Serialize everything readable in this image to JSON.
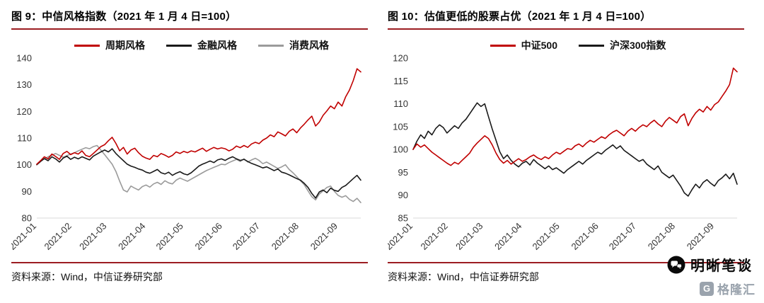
{
  "colors": {
    "accent_rule": "#9c1d22",
    "series_red": "#c00000",
    "series_black": "#1a1a1a",
    "series_gray": "#9b9b9b"
  },
  "chart_data": [
    {
      "figure_label": "图 9",
      "title": "图 9：中信风格指数（2021 年 1 月 4 日=100）",
      "type": "line",
      "grid": false,
      "legend_position": "top",
      "source": "资料来源：Wind，中信证券研究部",
      "x_axis": {
        "unit": "date",
        "start": "2021-01-04",
        "span_days": 258,
        "tick_labels": [
          "2021-01",
          "2021-02",
          "2021-03",
          "2021-04",
          "2021-05",
          "2021-06",
          "2021-07",
          "2021-08",
          "2021-09"
        ],
        "tick_days": [
          0,
          28,
          56,
          87,
          117,
          148,
          178,
          209,
          240
        ]
      },
      "y_axis": {
        "min": 80,
        "max": 140,
        "ticks": [
          80,
          90,
          100,
          110,
          120,
          130,
          140
        ]
      },
      "series": [
        {
          "name": "周期风格",
          "color": "#c00000",
          "values": [
            100.2,
            101.5,
            103.0,
            102.2,
            104.0,
            103.1,
            102.0,
            104.2,
            105.0,
            103.8,
            104.5,
            104.0,
            105.2,
            103.5,
            103.0,
            104.2,
            105.5,
            106.8,
            107.5,
            109.0,
            110.3,
            108.0,
            105.2,
            106.5,
            104.0,
            105.5,
            106.2,
            104.5,
            103.2,
            102.5,
            102.0,
            103.5,
            103.0,
            104.2,
            103.6,
            102.8,
            103.5,
            104.8,
            104.2,
            105.0,
            104.5,
            105.2,
            104.8,
            105.5,
            106.2,
            105.0,
            105.8,
            106.5,
            105.9,
            106.3,
            106.0,
            105.2,
            105.8,
            107.0,
            106.4,
            107.2,
            106.5,
            107.8,
            108.4,
            107.9,
            109.2,
            110.0,
            111.2,
            110.5,
            112.3,
            111.6,
            110.8,
            112.5,
            113.4,
            112.0,
            113.8,
            115.2,
            116.8,
            118.2,
            114.5,
            116.0,
            118.5,
            120.2,
            122.0,
            121.0,
            123.5,
            122.0,
            125.5,
            128.0,
            131.5,
            136.0,
            134.8
          ]
        },
        {
          "name": "金融风格",
          "color": "#1a1a1a",
          "values": [
            100.0,
            101.2,
            102.3,
            101.5,
            103.0,
            102.2,
            101.0,
            102.5,
            103.2,
            102.0,
            102.8,
            102.2,
            103.0,
            102.4,
            101.8,
            103.2,
            104.0,
            104.8,
            105.5,
            104.8,
            106.0,
            104.2,
            102.8,
            101.5,
            100.2,
            99.5,
            99.0,
            98.4,
            98.0,
            97.2,
            96.8,
            97.5,
            98.2,
            97.0,
            96.5,
            97.2,
            96.0,
            96.8,
            97.4,
            96.6,
            96.2,
            97.0,
            98.2,
            99.5,
            100.2,
            100.8,
            101.4,
            100.8,
            101.8,
            102.2,
            101.6,
            102.4,
            103.0,
            102.2,
            101.6,
            102.0,
            101.2,
            100.5,
            100.0,
            99.4,
            98.8,
            99.2,
            98.5,
            97.8,
            98.4,
            97.2,
            96.8,
            96.2,
            95.5,
            94.8,
            94.2,
            93.0,
            91.5,
            89.2,
            87.5,
            89.8,
            90.5,
            89.5,
            91.2,
            90.4,
            90.0,
            91.5,
            92.2,
            93.5,
            94.8,
            96.0,
            94.2
          ]
        },
        {
          "name": "消费风格",
          "color": "#9b9b9b",
          "values": [
            100.0,
            101.5,
            102.2,
            103.0,
            103.6,
            104.2,
            103.5,
            102.8,
            103.4,
            104.0,
            104.5,
            105.2,
            105.8,
            106.4,
            106.0,
            106.8,
            107.2,
            105.5,
            103.8,
            102.0,
            100.2,
            97.5,
            93.8,
            90.5,
            89.8,
            92.0,
            91.2,
            90.5,
            91.8,
            92.4,
            91.6,
            92.8,
            93.4,
            92.6,
            94.0,
            93.2,
            92.8,
            94.2,
            95.0,
            94.4,
            93.8,
            94.6,
            95.4,
            96.2,
            97.0,
            97.8,
            98.4,
            99.0,
            99.6,
            100.2,
            100.0,
            100.8,
            101.4,
            102.0,
            101.2,
            102.2,
            101.0,
            101.8,
            102.4,
            101.6,
            100.4,
            101.0,
            100.2,
            99.4,
            98.6,
            99.2,
            100.0,
            98.2,
            97.0,
            95.5,
            94.0,
            92.5,
            90.2,
            88.0,
            86.8,
            89.0,
            90.2,
            91.5,
            92.0,
            90.0,
            88.5,
            87.8,
            88.4,
            87.0,
            86.2,
            87.4,
            85.8
          ]
        }
      ]
    },
    {
      "figure_label": "图 10",
      "title": "图 10：估值更低的股票占优（2021 年 1 月 4 日=100）",
      "type": "line",
      "grid": false,
      "legend_position": "top",
      "source": "资料来源：Wind，中信证券研究部",
      "x_axis": {
        "unit": "date",
        "start": "2021-01-04",
        "span_days": 258,
        "tick_labels": [
          "2021-01",
          "2021-02",
          "2021-03",
          "2021-04",
          "2021-05",
          "2021-06",
          "2021-07",
          "2021-08",
          "2021-09"
        ],
        "tick_days": [
          0,
          28,
          56,
          87,
          117,
          148,
          178,
          209,
          240
        ]
      },
      "y_axis": {
        "min": 85,
        "max": 120,
        "ticks": [
          85,
          90,
          95,
          100,
          105,
          110,
          115,
          120
        ]
      },
      "series": [
        {
          "name": "中证500",
          "color": "#c00000",
          "values": [
            100.0,
            101.2,
            100.5,
            101.0,
            100.2,
            99.4,
            98.8,
            98.2,
            97.6,
            97.0,
            96.5,
            97.2,
            96.8,
            97.6,
            98.4,
            99.2,
            100.5,
            101.4,
            102.2,
            103.0,
            102.4,
            101.0,
            99.2,
            97.8,
            97.0,
            97.6,
            96.8,
            97.4,
            98.0,
            97.4,
            97.8,
            98.4,
            98.8,
            98.2,
            97.8,
            98.4,
            98.0,
            98.8,
            99.4,
            99.0,
            99.6,
            100.2,
            100.0,
            100.8,
            101.2,
            100.6,
            101.4,
            102.0,
            101.6,
            102.2,
            102.8,
            102.4,
            103.2,
            103.8,
            104.2,
            103.6,
            103.0,
            104.0,
            104.6,
            104.0,
            104.8,
            105.4,
            105.0,
            105.8,
            106.4,
            105.6,
            105.0,
            106.2,
            107.0,
            106.4,
            105.8,
            107.2,
            107.8,
            105.2,
            106.8,
            108.0,
            108.8,
            108.2,
            109.4,
            108.6,
            109.8,
            110.4,
            111.6,
            112.8,
            114.2,
            117.8,
            117.0
          ]
        },
        {
          "name": "沪深300指数",
          "color": "#1a1a1a",
          "values": [
            100.0,
            101.8,
            103.2,
            102.4,
            104.0,
            103.2,
            104.6,
            105.4,
            104.8,
            103.6,
            104.4,
            105.2,
            104.6,
            105.8,
            106.6,
            107.8,
            109.0,
            110.2,
            109.4,
            110.0,
            107.2,
            104.5,
            102.0,
            99.5,
            98.0,
            98.8,
            97.6,
            96.8,
            96.2,
            97.0,
            97.4,
            96.6,
            97.8,
            97.0,
            96.4,
            95.8,
            96.4,
            95.6,
            96.0,
            95.4,
            94.8,
            95.6,
            96.2,
            96.8,
            97.4,
            96.8,
            97.6,
            98.2,
            98.8,
            99.4,
            99.0,
            99.8,
            100.4,
            101.0,
            100.2,
            100.8,
            99.8,
            99.2,
            98.6,
            98.0,
            97.4,
            97.8,
            96.8,
            96.2,
            95.6,
            96.4,
            95.0,
            94.4,
            93.8,
            94.4,
            93.2,
            92.0,
            90.5,
            89.8,
            91.2,
            92.4,
            91.6,
            92.8,
            93.4,
            92.6,
            92.0,
            93.2,
            93.8,
            94.6,
            93.6,
            94.8,
            92.4
          ]
        }
      ]
    }
  ],
  "watermark": {
    "brand_text": "明晰笔谈",
    "platform_letter": "G",
    "platform_text": "格隆汇"
  }
}
